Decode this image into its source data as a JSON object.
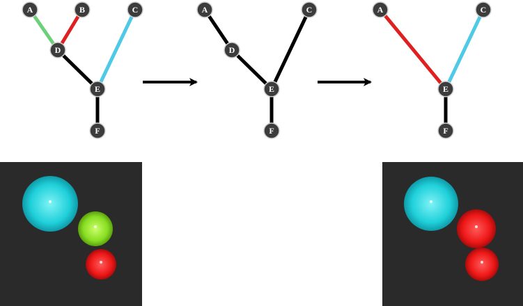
{
  "colors": {
    "background": "#ffffff",
    "edge_default": "#000000",
    "edge_green": "#6ccf7a",
    "edge_red": "#e02020",
    "edge_cyan": "#4ec9e6",
    "node_fill": "#3c3c3c",
    "node_stroke": "#cfcfcf",
    "panel_bg": "#2a2a2a",
    "sphere_cyan": "#20d8e0",
    "sphere_green": "#88dd22",
    "sphere_red": "#ee1818"
  },
  "trees": [
    {
      "id": "tree-1",
      "nodes": [
        {
          "id": "A",
          "label": "A"
        },
        {
          "id": "B",
          "label": "B"
        },
        {
          "id": "C",
          "label": "C"
        },
        {
          "id": "D",
          "label": "D"
        },
        {
          "id": "E",
          "label": "E"
        },
        {
          "id": "F",
          "label": "F"
        }
      ],
      "edges": [
        {
          "from": "A",
          "to": "D",
          "color": "edge_green"
        },
        {
          "from": "B",
          "to": "D",
          "color": "edge_red"
        },
        {
          "from": "D",
          "to": "E",
          "color": "edge_default"
        },
        {
          "from": "C",
          "to": "E",
          "color": "edge_cyan"
        },
        {
          "from": "E",
          "to": "F",
          "color": "edge_default"
        }
      ]
    },
    {
      "id": "tree-2",
      "nodes": [
        {
          "id": "A",
          "label": "A"
        },
        {
          "id": "C",
          "label": "C"
        },
        {
          "id": "D",
          "label": "D"
        },
        {
          "id": "E",
          "label": "E"
        },
        {
          "id": "F",
          "label": "F"
        }
      ],
      "edges": [
        {
          "from": "A",
          "to": "D",
          "color": "edge_default"
        },
        {
          "from": "D",
          "to": "E",
          "color": "edge_default"
        },
        {
          "from": "C",
          "to": "E",
          "color": "edge_default"
        },
        {
          "from": "E",
          "to": "F",
          "color": "edge_default"
        }
      ]
    },
    {
      "id": "tree-3",
      "nodes": [
        {
          "id": "A",
          "label": "A"
        },
        {
          "id": "C",
          "label": "C"
        },
        {
          "id": "E",
          "label": "E"
        },
        {
          "id": "F",
          "label": "F"
        }
      ],
      "edges": [
        {
          "from": "A",
          "to": "E",
          "color": "edge_red"
        },
        {
          "from": "C",
          "to": "E",
          "color": "edge_cyan"
        },
        {
          "from": "E",
          "to": "F",
          "color": "edge_default"
        }
      ]
    }
  ],
  "arrows": [
    {
      "id": "arrow-1",
      "icon": "right-arrow-icon"
    },
    {
      "id": "arrow-2",
      "icon": "right-arrow-icon"
    }
  ],
  "panels": [
    {
      "id": "panel-left",
      "spheres": [
        {
          "name": "cyan-sphere",
          "color": "sphere_cyan"
        },
        {
          "name": "green-sphere",
          "color": "sphere_green"
        },
        {
          "name": "red-sphere",
          "color": "sphere_red"
        }
      ]
    },
    {
      "id": "panel-right",
      "spheres": [
        {
          "name": "cyan-sphere",
          "color": "sphere_cyan"
        },
        {
          "name": "red-sphere-upper",
          "color": "sphere_red"
        },
        {
          "name": "red-sphere-lower",
          "color": "sphere_red"
        }
      ]
    }
  ]
}
